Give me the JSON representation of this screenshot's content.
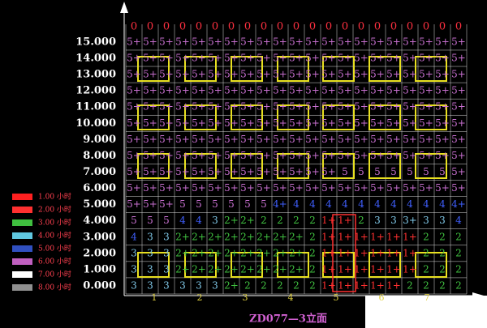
{
  "diagram": {
    "title": "ZD077—3立面",
    "top_row": [
      "0",
      "0",
      "0",
      "0",
      "0",
      "0",
      "0",
      "0",
      "0",
      "0",
      "0",
      "0",
      "0",
      "0",
      "0",
      "0",
      "0",
      "0",
      "0",
      "0",
      "0"
    ],
    "levels": [
      "0.000",
      "1.000",
      "2.000",
      "3.000",
      "4.000",
      "5.000",
      "6.000",
      "7.000",
      "8.000",
      "9.000",
      "10.000",
      "11.000",
      "12.000",
      "13.000",
      "14.000",
      "15.000"
    ],
    "axis_labels": [
      "1",
      "2",
      "3",
      "4",
      "5",
      "6",
      "7"
    ],
    "legend": [
      {
        "label": "1.00 小时",
        "color": "#ff2020"
      },
      {
        "label": "2.00 小时",
        "color": "#ff3030"
      },
      {
        "label": "3.00 小时",
        "color": "#40c040"
      },
      {
        "label": "4.00 小时",
        "color": "#60c8e0"
      },
      {
        "label": "5.00 小时",
        "color": "#3050c0"
      },
      {
        "label": "6.00 小时",
        "color": "#c060c0"
      },
      {
        "label": "7.00 小时",
        "color": "#ffffff"
      },
      {
        "label": "8.00 小时",
        "color": "#909090"
      }
    ],
    "level_colors": [
      "#ff3030",
      "#40c040",
      "#80c8e8",
      "#4060ff",
      "#c870d0"
    ],
    "rows": [
      [
        "3",
        "3",
        "3",
        "3",
        "3",
        "3",
        "2+",
        "2",
        "2",
        "2",
        "2",
        "2",
        "1+",
        "1+",
        "1+",
        "1+",
        "1+",
        "2",
        "2",
        "2",
        "2"
      ],
      [
        "3",
        "3",
        "3",
        "2+",
        "2+",
        "2+",
        "2+",
        "2+",
        "2+",
        "2+",
        "2+",
        "2",
        "1+",
        "1+",
        "1+",
        "1+",
        "1+",
        "1+",
        "2",
        "2",
        "2"
      ],
      [
        "3",
        "3",
        "3",
        "2+",
        "2+",
        "2+",
        "2+",
        "2+",
        "2+",
        "2+",
        "2+",
        "2",
        "1+",
        "1+",
        "1+",
        "1+",
        "1+",
        "1+",
        "2",
        "2",
        "2"
      ],
      [
        "4",
        "3",
        "3",
        "2+",
        "2+",
        "2+",
        "2+",
        "2+",
        "2+",
        "2+",
        "2+",
        "2",
        "1+",
        "1+",
        "1+",
        "1+",
        "1+",
        "1+",
        "2",
        "2",
        "2"
      ],
      [
        "5",
        "5",
        "5",
        "4",
        "4",
        "3",
        "2+",
        "2+",
        "2",
        "2",
        "2",
        "2",
        "1+",
        "1+",
        "2",
        "3",
        "3",
        "3+",
        "3",
        "3",
        "4"
      ],
      [
        "5+",
        "5+",
        "5+",
        "5",
        "5",
        "5",
        "5",
        "5",
        "5",
        "4+",
        "4",
        "4",
        "4",
        "4",
        "4",
        "4",
        "4",
        "4",
        "4",
        "4",
        "4+"
      ],
      [
        "5+",
        "5+",
        "5+",
        "5+",
        "5+",
        "5+",
        "5+",
        "5+",
        "5+",
        "5+",
        "5+",
        "5+",
        "5+",
        "5+",
        "5+",
        "5+",
        "5+",
        "5+",
        "5+",
        "5+",
        "5+"
      ],
      [
        "5+",
        "5+",
        "5+",
        "5+",
        "5+",
        "5+",
        "5+",
        "5+",
        "5+",
        "5+",
        "5+",
        "5+",
        "5+",
        "5",
        "5",
        "5",
        "5",
        "5",
        "5",
        "5",
        "5+"
      ],
      [
        "5+",
        "5+",
        "5+",
        "5+",
        "5+",
        "5+",
        "5+",
        "5+",
        "5+",
        "5+",
        "5+",
        "5+",
        "5+",
        "5+",
        "5+",
        "5+",
        "5+",
        "5+",
        "5+",
        "5+",
        "5+"
      ],
      [
        "5+",
        "5+",
        "5+",
        "5+",
        "5+",
        "5+",
        "5+",
        "5+",
        "5+",
        "5+",
        "5+",
        "5+",
        "5+",
        "5+",
        "5+",
        "5+",
        "5+",
        "5+",
        "5+",
        "5+",
        "5+"
      ],
      [
        "5+",
        "5+",
        "5+",
        "5+",
        "5+",
        "5+",
        "5+",
        "5+",
        "5+",
        "5+",
        "5+",
        "5+",
        "5+",
        "5+",
        "5+",
        "5+",
        "5+",
        "5+",
        "5+",
        "5+",
        "5+"
      ],
      [
        "5+",
        "5+",
        "5+",
        "5+",
        "5+",
        "5+",
        "5+",
        "5+",
        "5+",
        "5+",
        "5+",
        "5+",
        "5+",
        "5+",
        "5+",
        "5+",
        "5+",
        "5+",
        "5+",
        "5+",
        "5+"
      ],
      [
        "5+",
        "5+",
        "5+",
        "5+",
        "5+",
        "5+",
        "5+",
        "5+",
        "5+",
        "5+",
        "5+",
        "5+",
        "5+",
        "5+",
        "5+",
        "5+",
        "5+",
        "5+",
        "5+",
        "5+",
        "5+"
      ],
      [
        "5+",
        "5+",
        "5+",
        "5+",
        "5+",
        "5+",
        "5+",
        "5+",
        "5+",
        "5+",
        "5+",
        "5+",
        "5+",
        "5+",
        "5+",
        "5+",
        "5+",
        "5+",
        "5+",
        "5+",
        "5+"
      ],
      [
        "5+",
        "5+",
        "5+",
        "5+",
        "5+",
        "5+",
        "5+",
        "5+",
        "5+",
        "5+",
        "5+",
        "5+",
        "5+",
        "5+",
        "5+",
        "5+",
        "5+",
        "5+",
        "5+",
        "5+",
        "5+"
      ],
      [
        "5+",
        "5+",
        "5+",
        "5+",
        "5+",
        "5+",
        "5+",
        "5+",
        "5+",
        "5+",
        "5+",
        "5+",
        "5+",
        "5+",
        "5+",
        "5+",
        "5+",
        "5+",
        "5+",
        "5+",
        "5+"
      ]
    ]
  }
}
